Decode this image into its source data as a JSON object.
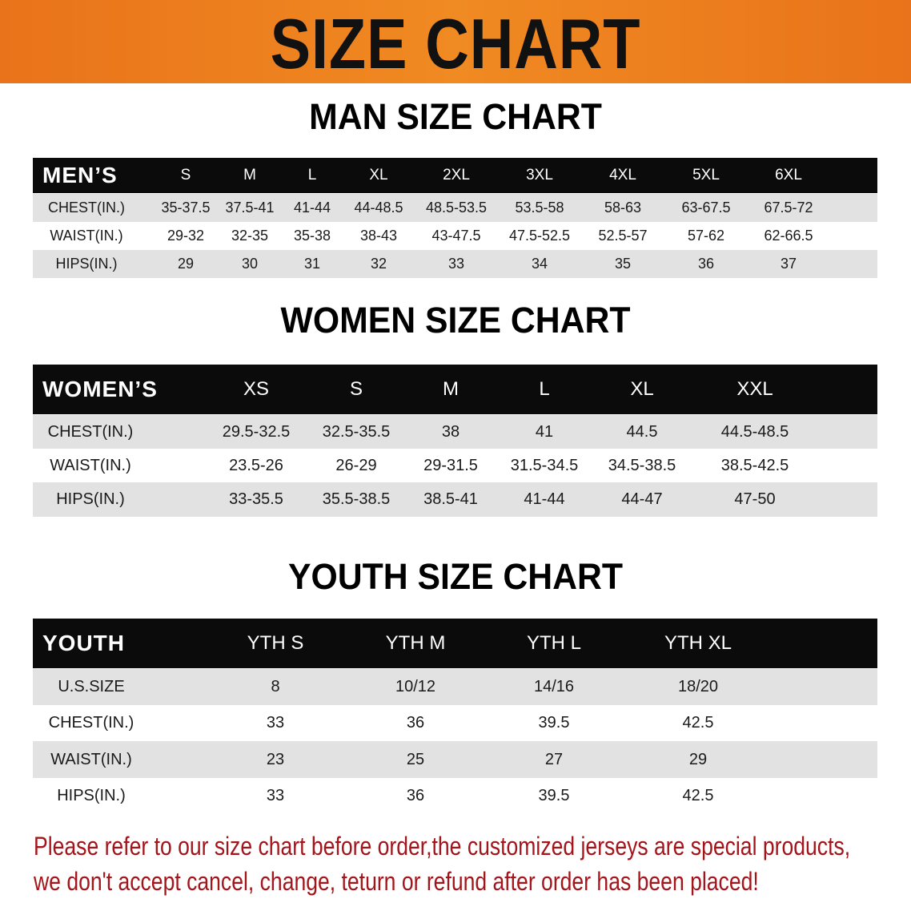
{
  "banner": {
    "title": "SIZE CHART"
  },
  "men": {
    "title": "MAN SIZE CHART",
    "header": [
      "MEN’S",
      "S",
      "M",
      "L",
      "XL",
      "2XL",
      "3XL",
      "4XL",
      "5XL",
      "6XL"
    ],
    "rows": [
      [
        "CHEST(IN.)",
        "35-37.5",
        "37.5-41",
        "41-44",
        "44-48.5",
        "48.5-53.5",
        "53.5-58",
        "58-63",
        "63-67.5",
        "67.5-72"
      ],
      [
        "WAIST(IN.)",
        "29-32",
        "32-35",
        "35-38",
        "38-43",
        "43-47.5",
        "47.5-52.5",
        "52.5-57",
        "57-62",
        "62-66.5"
      ],
      [
        "HIPS(IN.)",
        "29",
        "30",
        "31",
        "32",
        "33",
        "34",
        "35",
        "36",
        "37"
      ]
    ]
  },
  "women": {
    "title": "WOMEN SIZE CHART",
    "header": [
      "WOMEN’S",
      "XS",
      "S",
      "M",
      "L",
      "XL",
      "XXL"
    ],
    "rows": [
      [
        "CHEST(IN.)",
        "29.5-32.5",
        "32.5-35.5",
        "38",
        "41",
        "44.5",
        "44.5-48.5"
      ],
      [
        "WAIST(IN.)",
        "23.5-26",
        "26-29",
        "29-31.5",
        "31.5-34.5",
        "34.5-38.5",
        "38.5-42.5"
      ],
      [
        "HIPS(IN.)",
        "33-35.5",
        "35.5-38.5",
        "38.5-41",
        "41-44",
        "44-47",
        "47-50"
      ]
    ]
  },
  "youth": {
    "title": "YOUTH SIZE CHART",
    "header": [
      "YOUTH",
      "YTH S",
      "YTH M",
      "YTH L",
      "YTH XL"
    ],
    "rows": [
      [
        "U.S.SIZE",
        "8",
        "10/12",
        "14/16",
        "18/20"
      ],
      [
        "CHEST(IN.)",
        "33",
        "36",
        "39.5",
        "42.5"
      ],
      [
        "WAIST(IN.)",
        "23",
        "25",
        "27",
        "29"
      ],
      [
        "HIPS(IN.)",
        "33",
        "36",
        "39.5",
        "42.5"
      ]
    ]
  },
  "footer": {
    "line1": "Please refer to our size chart before order,the customized jerseys are special products,",
    "line2": "we don't accept cancel, change, teturn or refund after order has been placed!"
  },
  "colors": {
    "banner": "#ef8220",
    "header_row": "#0b0b0b",
    "stripe": "#e2e2e2",
    "notice": "#a3151b"
  }
}
